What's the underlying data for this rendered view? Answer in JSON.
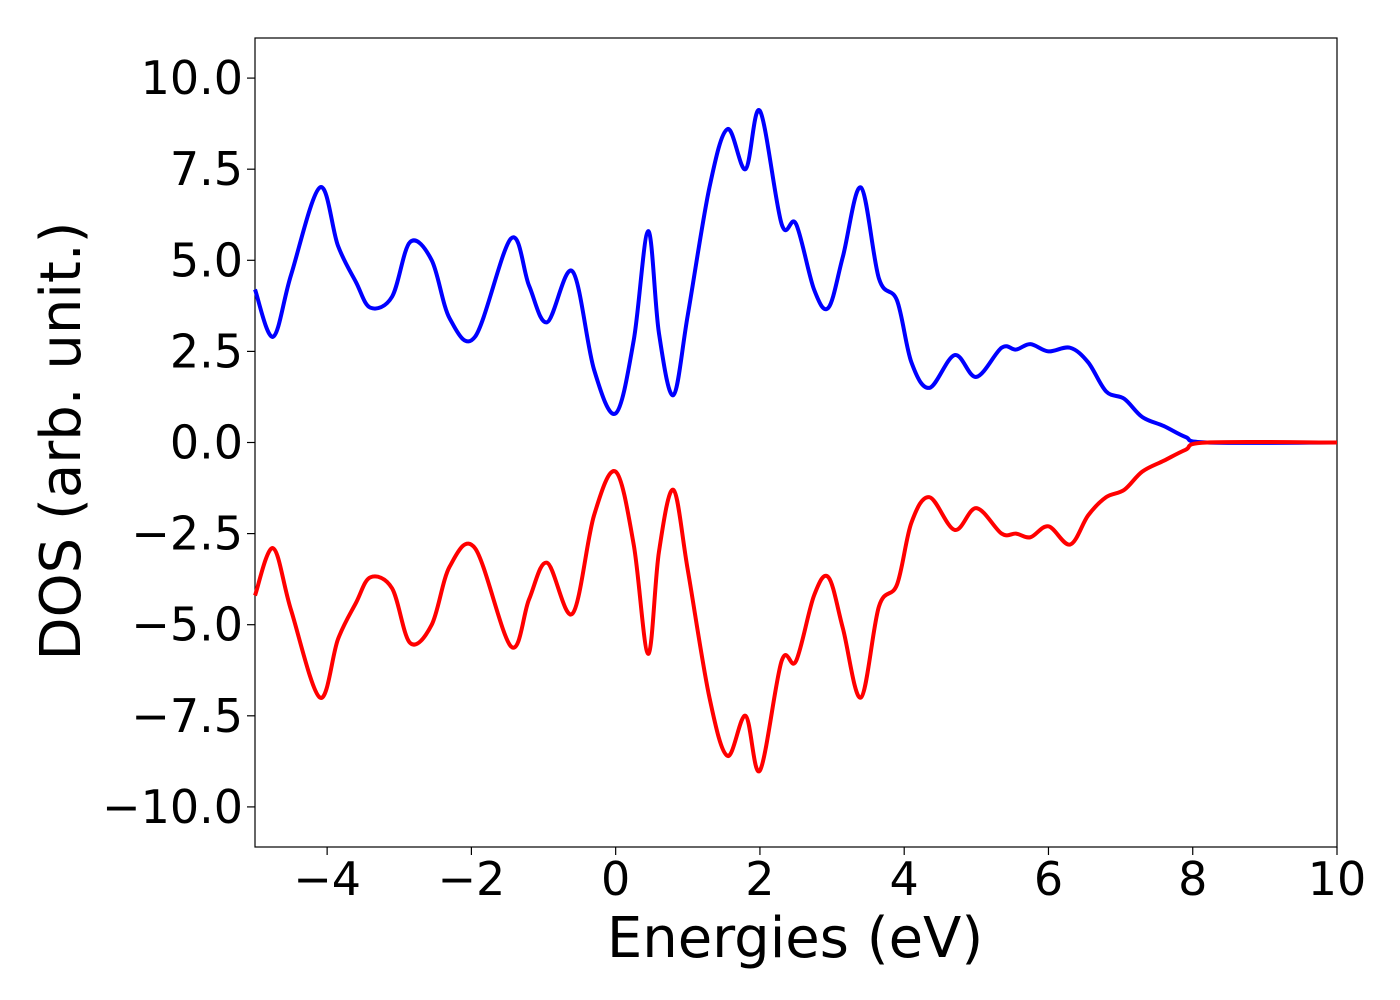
{
  "chart_data": {
    "type": "line",
    "title": "",
    "xlabel": "Energies (eV)",
    "ylabel": "DOS (arb. unit.)",
    "xlim": [
      -5,
      10
    ],
    "ylim": [
      -11.1,
      11.1
    ],
    "xticks": [
      -4,
      -2,
      0,
      2,
      4,
      6,
      8,
      10
    ],
    "xtick_labels": [
      "−4",
      "−2",
      "0",
      "2",
      "4",
      "6",
      "8",
      "10"
    ],
    "yticks": [
      -10,
      -7.5,
      -5,
      -2.5,
      0,
      2.5,
      5,
      7.5,
      10
    ],
    "ytick_labels": [
      "−10.0",
      "−7.5",
      "−5.0",
      "−2.5",
      "0.0",
      "2.5",
      "5.0",
      "7.5",
      "10.0"
    ],
    "grid": false,
    "legend": "none",
    "series": [
      {
        "color": "#0000ff",
        "points": [
          [
            -5.0,
            4.2
          ],
          [
            -4.75,
            2.9
          ],
          [
            -4.5,
            4.6
          ],
          [
            -4.1,
            7.0
          ],
          [
            -3.85,
            5.4
          ],
          [
            -3.6,
            4.4
          ],
          [
            -3.4,
            3.7
          ],
          [
            -3.1,
            4.0
          ],
          [
            -2.85,
            5.5
          ],
          [
            -2.55,
            5.0
          ],
          [
            -2.3,
            3.4
          ],
          [
            -1.95,
            2.9
          ],
          [
            -1.45,
            5.6
          ],
          [
            -1.2,
            4.3
          ],
          [
            -0.95,
            3.3
          ],
          [
            -0.6,
            4.7
          ],
          [
            -0.3,
            2.0
          ],
          [
            0.0,
            0.8
          ],
          [
            0.25,
            2.8
          ],
          [
            0.45,
            5.8
          ],
          [
            0.6,
            3.0
          ],
          [
            0.8,
            1.3
          ],
          [
            1.0,
            3.5
          ],
          [
            1.3,
            7.0
          ],
          [
            1.55,
            8.6
          ],
          [
            1.8,
            7.5
          ],
          [
            2.0,
            9.1
          ],
          [
            2.3,
            6.0
          ],
          [
            2.5,
            6.0
          ],
          [
            2.75,
            4.2
          ],
          [
            2.95,
            3.7
          ],
          [
            3.15,
            5.1
          ],
          [
            3.4,
            7.0
          ],
          [
            3.65,
            4.5
          ],
          [
            3.9,
            3.9
          ],
          [
            4.1,
            2.2
          ],
          [
            4.35,
            1.5
          ],
          [
            4.7,
            2.4
          ],
          [
            5.0,
            1.8
          ],
          [
            5.35,
            2.6
          ],
          [
            5.55,
            2.55
          ],
          [
            5.75,
            2.7
          ],
          [
            6.0,
            2.5
          ],
          [
            6.3,
            2.6
          ],
          [
            6.55,
            2.2
          ],
          [
            6.8,
            1.4
          ],
          [
            7.05,
            1.2
          ],
          [
            7.3,
            0.7
          ],
          [
            7.6,
            0.45
          ],
          [
            7.9,
            0.15
          ],
          [
            8.2,
            0.0
          ],
          [
            10.0,
            0.0
          ]
        ]
      },
      {
        "color": "#ff0000",
        "points": [
          [
            -5.0,
            -4.2
          ],
          [
            -4.75,
            -2.9
          ],
          [
            -4.5,
            -4.6
          ],
          [
            -4.1,
            -7.0
          ],
          [
            -3.85,
            -5.4
          ],
          [
            -3.6,
            -4.4
          ],
          [
            -3.4,
            -3.7
          ],
          [
            -3.1,
            -4.0
          ],
          [
            -2.85,
            -5.5
          ],
          [
            -2.55,
            -5.0
          ],
          [
            -2.3,
            -3.4
          ],
          [
            -1.95,
            -2.9
          ],
          [
            -1.45,
            -5.6
          ],
          [
            -1.2,
            -4.3
          ],
          [
            -0.95,
            -3.3
          ],
          [
            -0.6,
            -4.7
          ],
          [
            -0.3,
            -2.0
          ],
          [
            0.0,
            -0.8
          ],
          [
            0.25,
            -2.8
          ],
          [
            0.45,
            -5.8
          ],
          [
            0.6,
            -3.0
          ],
          [
            0.8,
            -1.3
          ],
          [
            1.0,
            -3.5
          ],
          [
            1.3,
            -7.0
          ],
          [
            1.55,
            -8.6
          ],
          [
            1.8,
            -7.5
          ],
          [
            2.0,
            -9.0
          ],
          [
            2.3,
            -6.0
          ],
          [
            2.5,
            -6.0
          ],
          [
            2.75,
            -4.2
          ],
          [
            2.95,
            -3.7
          ],
          [
            3.15,
            -5.1
          ],
          [
            3.4,
            -7.0
          ],
          [
            3.65,
            -4.5
          ],
          [
            3.9,
            -3.9
          ],
          [
            4.1,
            -2.2
          ],
          [
            4.35,
            -1.5
          ],
          [
            4.7,
            -2.4
          ],
          [
            5.0,
            -1.8
          ],
          [
            5.35,
            -2.5
          ],
          [
            5.55,
            -2.5
          ],
          [
            5.75,
            -2.6
          ],
          [
            6.0,
            -2.3
          ],
          [
            6.3,
            -2.8
          ],
          [
            6.55,
            -2.0
          ],
          [
            6.8,
            -1.5
          ],
          [
            7.05,
            -1.3
          ],
          [
            7.3,
            -0.8
          ],
          [
            7.6,
            -0.5
          ],
          [
            7.9,
            -0.2
          ],
          [
            8.2,
            0.0
          ],
          [
            10.0,
            0.0
          ]
        ]
      }
    ]
  }
}
